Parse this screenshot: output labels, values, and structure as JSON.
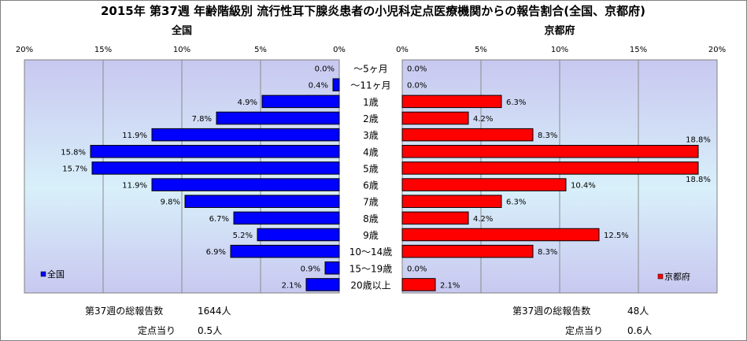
{
  "chart_data": {
    "type": "bar",
    "title": "2015年 第37週 年齢階級別 流行性耳下腺炎患者の小児科定点医療機関からの報告割合(全国、京都府)",
    "categories": [
      "～5ヶ月",
      "～11ヶ月",
      "1歳",
      "2歳",
      "3歳",
      "4歳",
      "5歳",
      "6歳",
      "7歳",
      "8歳",
      "9歳",
      "10～14歳",
      "15～19歳",
      "20歳以上"
    ],
    "xlim": [
      0,
      20
    ],
    "ticks": [
      "0%",
      "5%",
      "10%",
      "15%",
      "20%"
    ],
    "series": [
      {
        "name": "全国",
        "panel_title": "全国",
        "color": "#0000ff",
        "values": [
          0.0,
          0.4,
          4.9,
          7.8,
          11.9,
          15.8,
          15.7,
          11.9,
          9.8,
          6.7,
          5.2,
          6.9,
          0.9,
          2.1
        ],
        "labels": [
          "0.0%",
          "0.4%",
          "4.9%",
          "7.8%",
          "11.9%",
          "15.8%",
          "15.7%",
          "11.9%",
          "9.8%",
          "6.7%",
          "5.2%",
          "6.9%",
          "0.9%",
          "2.1%"
        ],
        "legend": "全国"
      },
      {
        "name": "京都府",
        "panel_title": "京都府",
        "color": "#ff0000",
        "values": [
          0.0,
          0.0,
          6.3,
          4.2,
          8.3,
          18.8,
          18.8,
          10.4,
          6.3,
          4.2,
          12.5,
          8.3,
          0.0,
          2.1
        ],
        "labels": [
          "0.0%",
          "0.0%",
          "6.3%",
          "4.2%",
          "8.3%",
          "18.8%",
          "18.8%",
          "10.4%",
          "6.3%",
          "4.2%",
          "12.5%",
          "8.3%",
          "0.0%",
          "2.1%"
        ],
        "legend": "京都府"
      }
    ],
    "grid": true,
    "legend_placement": "bottom-left / bottom-right"
  },
  "stats": {
    "national": {
      "total_label": "第37週の総報告数",
      "total_value": "1644人",
      "per_label": "定点当り",
      "per_value": "0.5人"
    },
    "kyoto": {
      "total_label": "第37週の総報告数",
      "total_value": "48人",
      "per_label": "定点当り",
      "per_value": "0.6人"
    }
  }
}
